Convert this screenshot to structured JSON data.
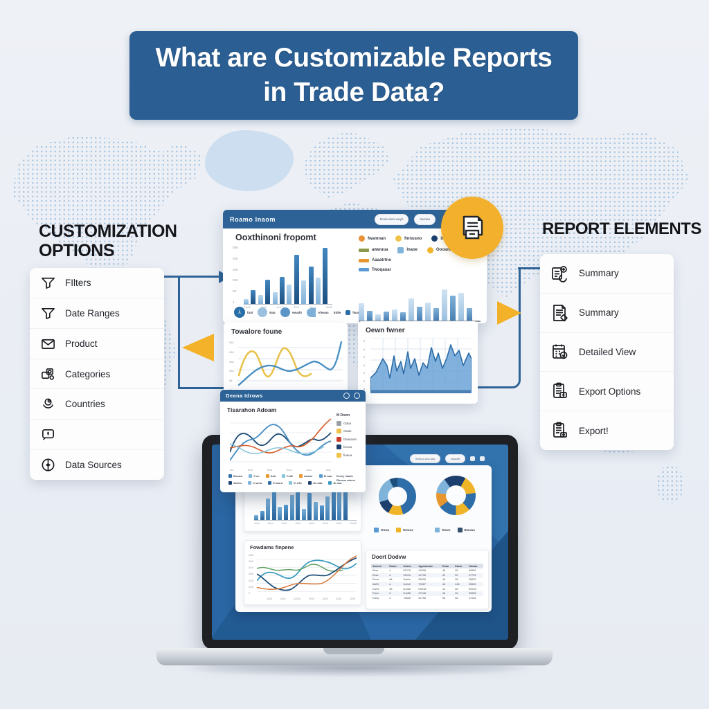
{
  "title": {
    "line1": "What are Customizable Reports",
    "line2": "in Trade Data?"
  },
  "colors": {
    "banner_blue": "#2b5f94",
    "header_blue": "#2d6296",
    "accent_yellow": "#f2b02c",
    "bar_light": "#7fb0d8",
    "bar_dark": "#1d4f80",
    "navy": "#1d3f6e",
    "orange": "#e8923a",
    "yellow": "#f0c24a",
    "olive": "#8a9a4a",
    "red": "#cc3b2e",
    "steel": "#4a90c4",
    "teal": "#3a9bbf",
    "green": "#5a9e5d"
  },
  "left_panel": {
    "heading": "CUSTOMIZATION OPTIONS",
    "items": [
      {
        "icon": "funnel",
        "label": "FIlters"
      },
      {
        "icon": "funnel",
        "label": "Date Ranges"
      },
      {
        "icon": "envelope",
        "label": "Product"
      },
      {
        "icon": "category",
        "label": "Categories"
      },
      {
        "icon": "globe",
        "label": "Countries"
      },
      {
        "icon": "chat",
        "label": ""
      },
      {
        "icon": "clock",
        "label": "Data Sources"
      }
    ]
  },
  "right_panel": {
    "heading": "REPORT ELEMENTS",
    "items": [
      {
        "icon": "doc-chart",
        "label": "Summary"
      },
      {
        "icon": "doc-lines",
        "label": "Summary"
      },
      {
        "icon": "calendar",
        "label": "Detailed View"
      },
      {
        "icon": "clipboard",
        "label": "Export Options"
      },
      {
        "icon": "clipboard2",
        "label": "Export!"
      }
    ]
  },
  "dashboard": {
    "header": {
      "title": "Roamo Inaom",
      "buttons": [
        "Reaa aasa awyb",
        "tawnaa"
      ]
    },
    "panel_title": "Ooxthinoni fropomt",
    "bar_chart": {
      "type": "bar",
      "values": [
        8,
        24,
        16,
        42,
        20,
        47,
        33,
        85,
        40,
        64,
        45,
        97
      ],
      "palette": [
        "l",
        "l",
        "l",
        "l",
        "l",
        "l",
        "l",
        "d",
        "l",
        "l",
        "l",
        "d"
      ],
      "alt": [
        "l",
        "d"
      ],
      "y_labels": [
        "088",
        "048",
        "038",
        "028",
        "08",
        "4"
      ],
      "x_labels": [
        "4 5aT",
        "6-b0",
        "5-a-T",
        "69-0",
        "5a-vt",
        "8V99"
      ]
    },
    "chips": [
      {
        "style": "circle-dark",
        "glyph": "λ",
        "label": "funi"
      },
      {
        "style": "circle-light",
        "glyph": "",
        "label": "Baa"
      },
      {
        "style": "circle-med",
        "glyph": "",
        "label": "Awad0"
      },
      {
        "style": "half",
        "glyph": "",
        "label": "Afewas"
      },
      {
        "style": "plain",
        "glyph": "",
        "label": "Eidw"
      },
      {
        "style": "square",
        "glyph": "",
        "label": "fwad"
      }
    ],
    "legend_rows": [
      [
        {
          "shape": "dot",
          "color": "#e8923a",
          "label": "fwamnan"
        },
        {
          "shape": "dot",
          "color": "#f0c24a",
          "label": "fmnusno"
        },
        {
          "shape": "dot",
          "color": "#1d3f6e",
          "label": "bvooase"
        }
      ],
      [
        {
          "shape": "bar",
          "color": "#8a9a4a",
          "label": "awwuua"
        },
        {
          "shape": "sq",
          "color": "#7fb3da",
          "label": "Inaoe"
        },
        {
          "shape": "dot",
          "color": "#f0b429",
          "label": "Oooanaa"
        }
      ],
      [
        {
          "shape": "bar",
          "color": "#e8962e",
          "label": "Aaaatrtno"
        }
      ],
      [
        {
          "shape": "bar",
          "color": "#5b9bd5",
          "label": "Twoqauar"
        }
      ]
    ],
    "mini_bars": {
      "type": "bar",
      "values": [
        35,
        20,
        12,
        18,
        22,
        16,
        45,
        28,
        36,
        25,
        62,
        50,
        55,
        25
      ]
    },
    "line_card": {
      "title": "Towalore foune",
      "y_labels": [
        "083",
        "080",
        "0a8",
        "088",
        "88",
        "09"
      ]
    },
    "area_card": {
      "title": "Oewn fwner",
      "y_labels": [
        "8",
        "8",
        "8",
        "8",
        "8",
        "8",
        "8"
      ]
    }
  },
  "overlay_window": {
    "titlebar": "Deana Idrows",
    "title": "Tisarahon Adoam",
    "legend_header": "M Down",
    "legend": [
      {
        "color": "#9aa0a6",
        "label": "Odua"
      },
      {
        "color": "#f0c24a",
        "label": "Owas"
      },
      {
        "color": "#cc3b2e",
        "label": "Dwaunan"
      },
      {
        "color": "#1d3f6e",
        "label": "fwooa"
      },
      {
        "color": "#f0c24a",
        "label": "finaua"
      }
    ],
    "x_labels": [
      "fv3",
      "Ewn",
      "0wa",
      "Eow",
      "Gaw",
      "Vow"
    ],
    "chips_row1": [
      {
        "color": "#2d6da8",
        "label": "Boown"
      },
      {
        "color": "#7fb3da",
        "label": "fi co"
      },
      {
        "color": "#e8962e",
        "label": "Aab"
      },
      {
        "color": "#86c5da",
        "label": "fi aB"
      },
      {
        "color": "#e8962e",
        "label": "Awawr"
      },
      {
        "color": "#5b9bd5",
        "label": "Ei aaa"
      }
    ],
    "chips_row2": [
      {
        "color": "#1d3f6e",
        "label": "Aweto"
      },
      {
        "color": "#7fb3da",
        "label": "Ci ama"
      },
      {
        "color": "#2d6da8",
        "label": "Ei awra"
      },
      {
        "color": "#86c5da",
        "label": "th aTa"
      },
      {
        "color": "#1d3f6e",
        "label": "Jin ada"
      },
      {
        "color": "#3a9bbf",
        "label": "Ai aua"
      }
    ],
    "note_line1": "Drwry Jaade",
    "note_line2": "Rbswm adeno"
  },
  "laptop": {
    "top_buttons": [
      "Wdna A ana aaa",
      "Nuacett"
    ],
    "bar_chart": {
      "type": "bar",
      "values": [
        10,
        18,
        42,
        55,
        25,
        30,
        48,
        60,
        22,
        52,
        35,
        28,
        45,
        62,
        56,
        60
      ],
      "x_labels": [
        "u0va",
        "40vw",
        "9wv5",
        "40a3",
        "4bw0",
        "50v8",
        "40a5",
        "40a98"
      ]
    },
    "line_card": {
      "title": "Fowdams finpene",
      "y_labels": [
        "088",
        "088",
        "048",
        "088",
        "038",
        "028",
        "0"
      ],
      "x_labels": [
        "4045",
        "4049",
        "42028",
        "4045",
        "4049",
        "4008",
        "4049"
      ]
    },
    "donut1": {
      "type": "pie",
      "segments": [
        {
          "color": "#2d6da8",
          "pct": 45
        },
        {
          "color": "#f0b429",
          "pct": 13
        },
        {
          "color": "#1d3f6e",
          "pct": 12
        },
        {
          "color": "#7fb3da",
          "pct": 23
        },
        {
          "color": "#1d4f7e",
          "pct": 7
        }
      ]
    },
    "donut2": {
      "type": "pie",
      "segments": [
        {
          "color": "#1d3f6e",
          "pct": 8
        },
        {
          "color": "#f0b429",
          "pct": 15
        },
        {
          "color": "#2d6da8",
          "pct": 15
        },
        {
          "color": "#f0b429",
          "pct": 12
        },
        {
          "color": "#2d6da8",
          "pct": 15
        },
        {
          "color": "#e8962e",
          "pct": 12
        },
        {
          "color": "#7fb3da",
          "pct": 13
        },
        {
          "color": "#1d3f6e",
          "pct": 10
        }
      ]
    },
    "donut1_legend": [
      {
        "color": "#5b9bd5",
        "label": "Onwa"
      },
      {
        "color": "#f0b429",
        "label": "Ewooa"
      }
    ],
    "donut2_legend": [
      {
        "color": "#7fb3da",
        "label": "Onwo"
      },
      {
        "color": "#33516e",
        "label": "Bwows"
      }
    ],
    "table": {
      "title": "Doert Dodvw",
      "headers": [
        "Awwnn",
        "Euam",
        "Odwm",
        "Agawwnaw",
        "Euaa",
        "Eawo",
        "Odwaa"
      ],
      "rows": [
        [
          "Eiwa",
          "4",
          "52078",
          "40528",
          "48",
          "05",
          "40828"
        ],
        [
          "Eilaa",
          "d",
          "25049",
          "42708",
          "42",
          "50",
          "47753"
        ],
        [
          "Ehua",
          "d8",
          "0wt0a",
          "89528",
          "46",
          "98",
          "95825"
        ],
        [
          "4aB3",
          "d",
          "2a0x8",
          "75087",
          "48",
          "448",
          "05808"
        ],
        [
          "Ew93",
          "98",
          "8u0d8",
          "E5248",
          "44",
          "58",
          "E5903"
        ],
        [
          "Fbad",
          "5",
          "0u088",
          "27048",
          "48",
          "30",
          "25908"
        ],
        [
          "Edhw",
          "u",
          "78838",
          "62758",
          "58",
          "68",
          "47928"
        ]
      ]
    }
  }
}
